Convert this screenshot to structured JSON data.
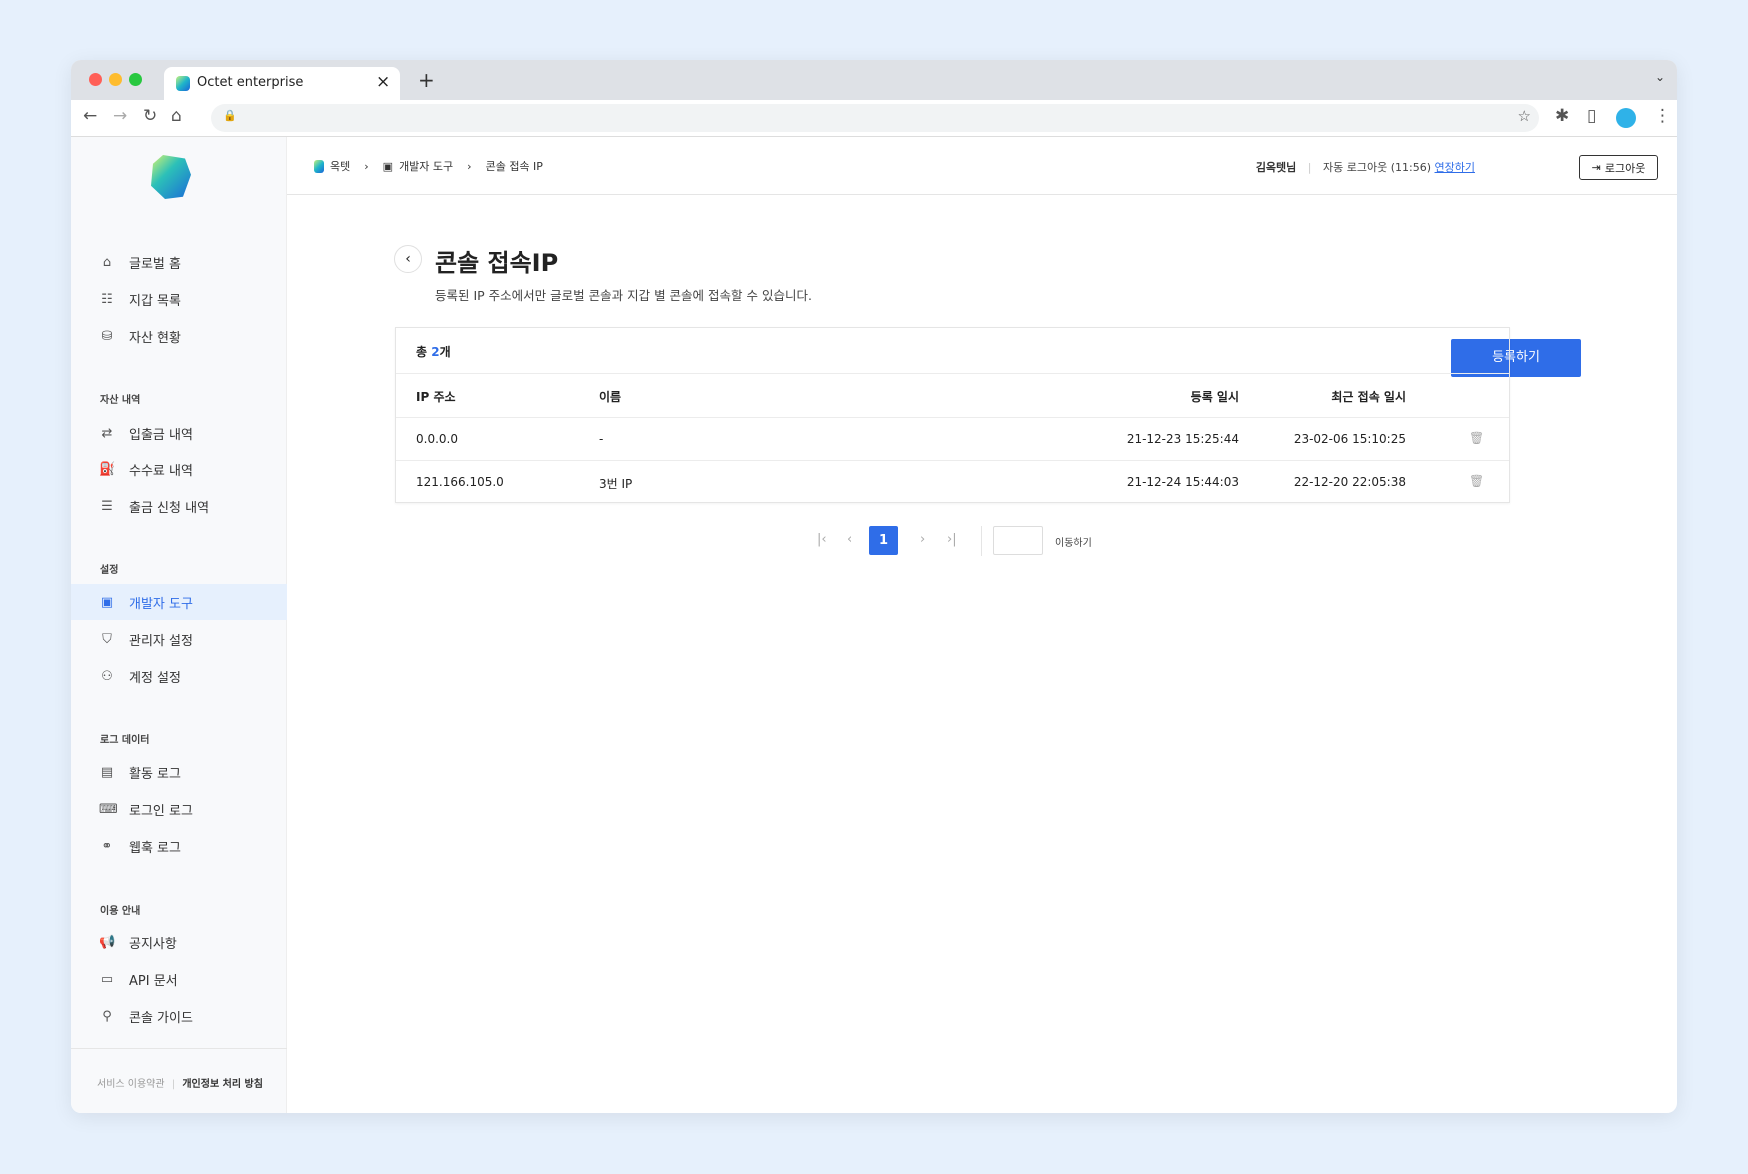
{
  "browser": {
    "tab_title": "Octet enterprise",
    "close": "×",
    "new_tab": "+"
  },
  "sidebar": {
    "top_items": [
      {
        "label": "글로벌 홈",
        "icon": "home-icon"
      },
      {
        "label": "지갑 목록",
        "icon": "wallet-list-icon"
      },
      {
        "label": "자산 현황",
        "icon": "assets-icon"
      }
    ],
    "sections": [
      {
        "title": "자산 내역",
        "items": [
          {
            "label": "입출금 내역"
          },
          {
            "label": "수수료 내역"
          },
          {
            "label": "출금 신청 내역"
          }
        ]
      },
      {
        "title": "설정",
        "items": [
          {
            "label": "개발자 도구",
            "active": true
          },
          {
            "label": "관리자 설정"
          },
          {
            "label": "계정 설정"
          }
        ]
      },
      {
        "title": "로그 데이터",
        "items": [
          {
            "label": "활동 로그"
          },
          {
            "label": "로그인 로그"
          },
          {
            "label": "웹훅 로그"
          }
        ]
      },
      {
        "title": "이용 안내",
        "items": [
          {
            "label": "공지사항"
          },
          {
            "label": "API 문서"
          },
          {
            "label": "콘솔 가이드"
          }
        ]
      }
    ],
    "footer": {
      "terms": "서비스 이용약관",
      "privacy": "개인정보 처리 방침"
    }
  },
  "header": {
    "breadcrumb": [
      "옥텟",
      "개발자 도구",
      "콘솔 접속 IP"
    ],
    "user": "김옥텟님",
    "auto_logout": "자동 로그아웃 (11:56)",
    "extend": "연장하기",
    "logout": "로그아웃"
  },
  "page": {
    "title": "콘솔 접속IP",
    "description": "등록된 IP 주소에서만 글로벌 콘솔과 지갑 별 콘솔에 접속할 수 있습니다.",
    "register": "등록하기"
  },
  "table": {
    "total_prefix": "총 ",
    "total_count": "2",
    "total_suffix": "개",
    "columns": [
      "IP 주소",
      "이름",
      "등록 일시",
      "최근 접속 일시"
    ],
    "rows": [
      {
        "ip": "0.0.0.0",
        "name": "-",
        "registered": "21-12-23 15:25:44",
        "last_access": "23-02-06 15:10:25"
      },
      {
        "ip": "121.166.105.0",
        "name": "3번 IP",
        "registered": "21-12-24 15:44:03",
        "last_access": "22-12-20 22:05:38"
      }
    ]
  },
  "pagination": {
    "current": "1",
    "goto_label": "이동하기",
    "goto_placeholder": ""
  },
  "help": "?",
  "colors": {
    "accent": "#2f6de8",
    "active_bg": "#e6f0fd"
  }
}
